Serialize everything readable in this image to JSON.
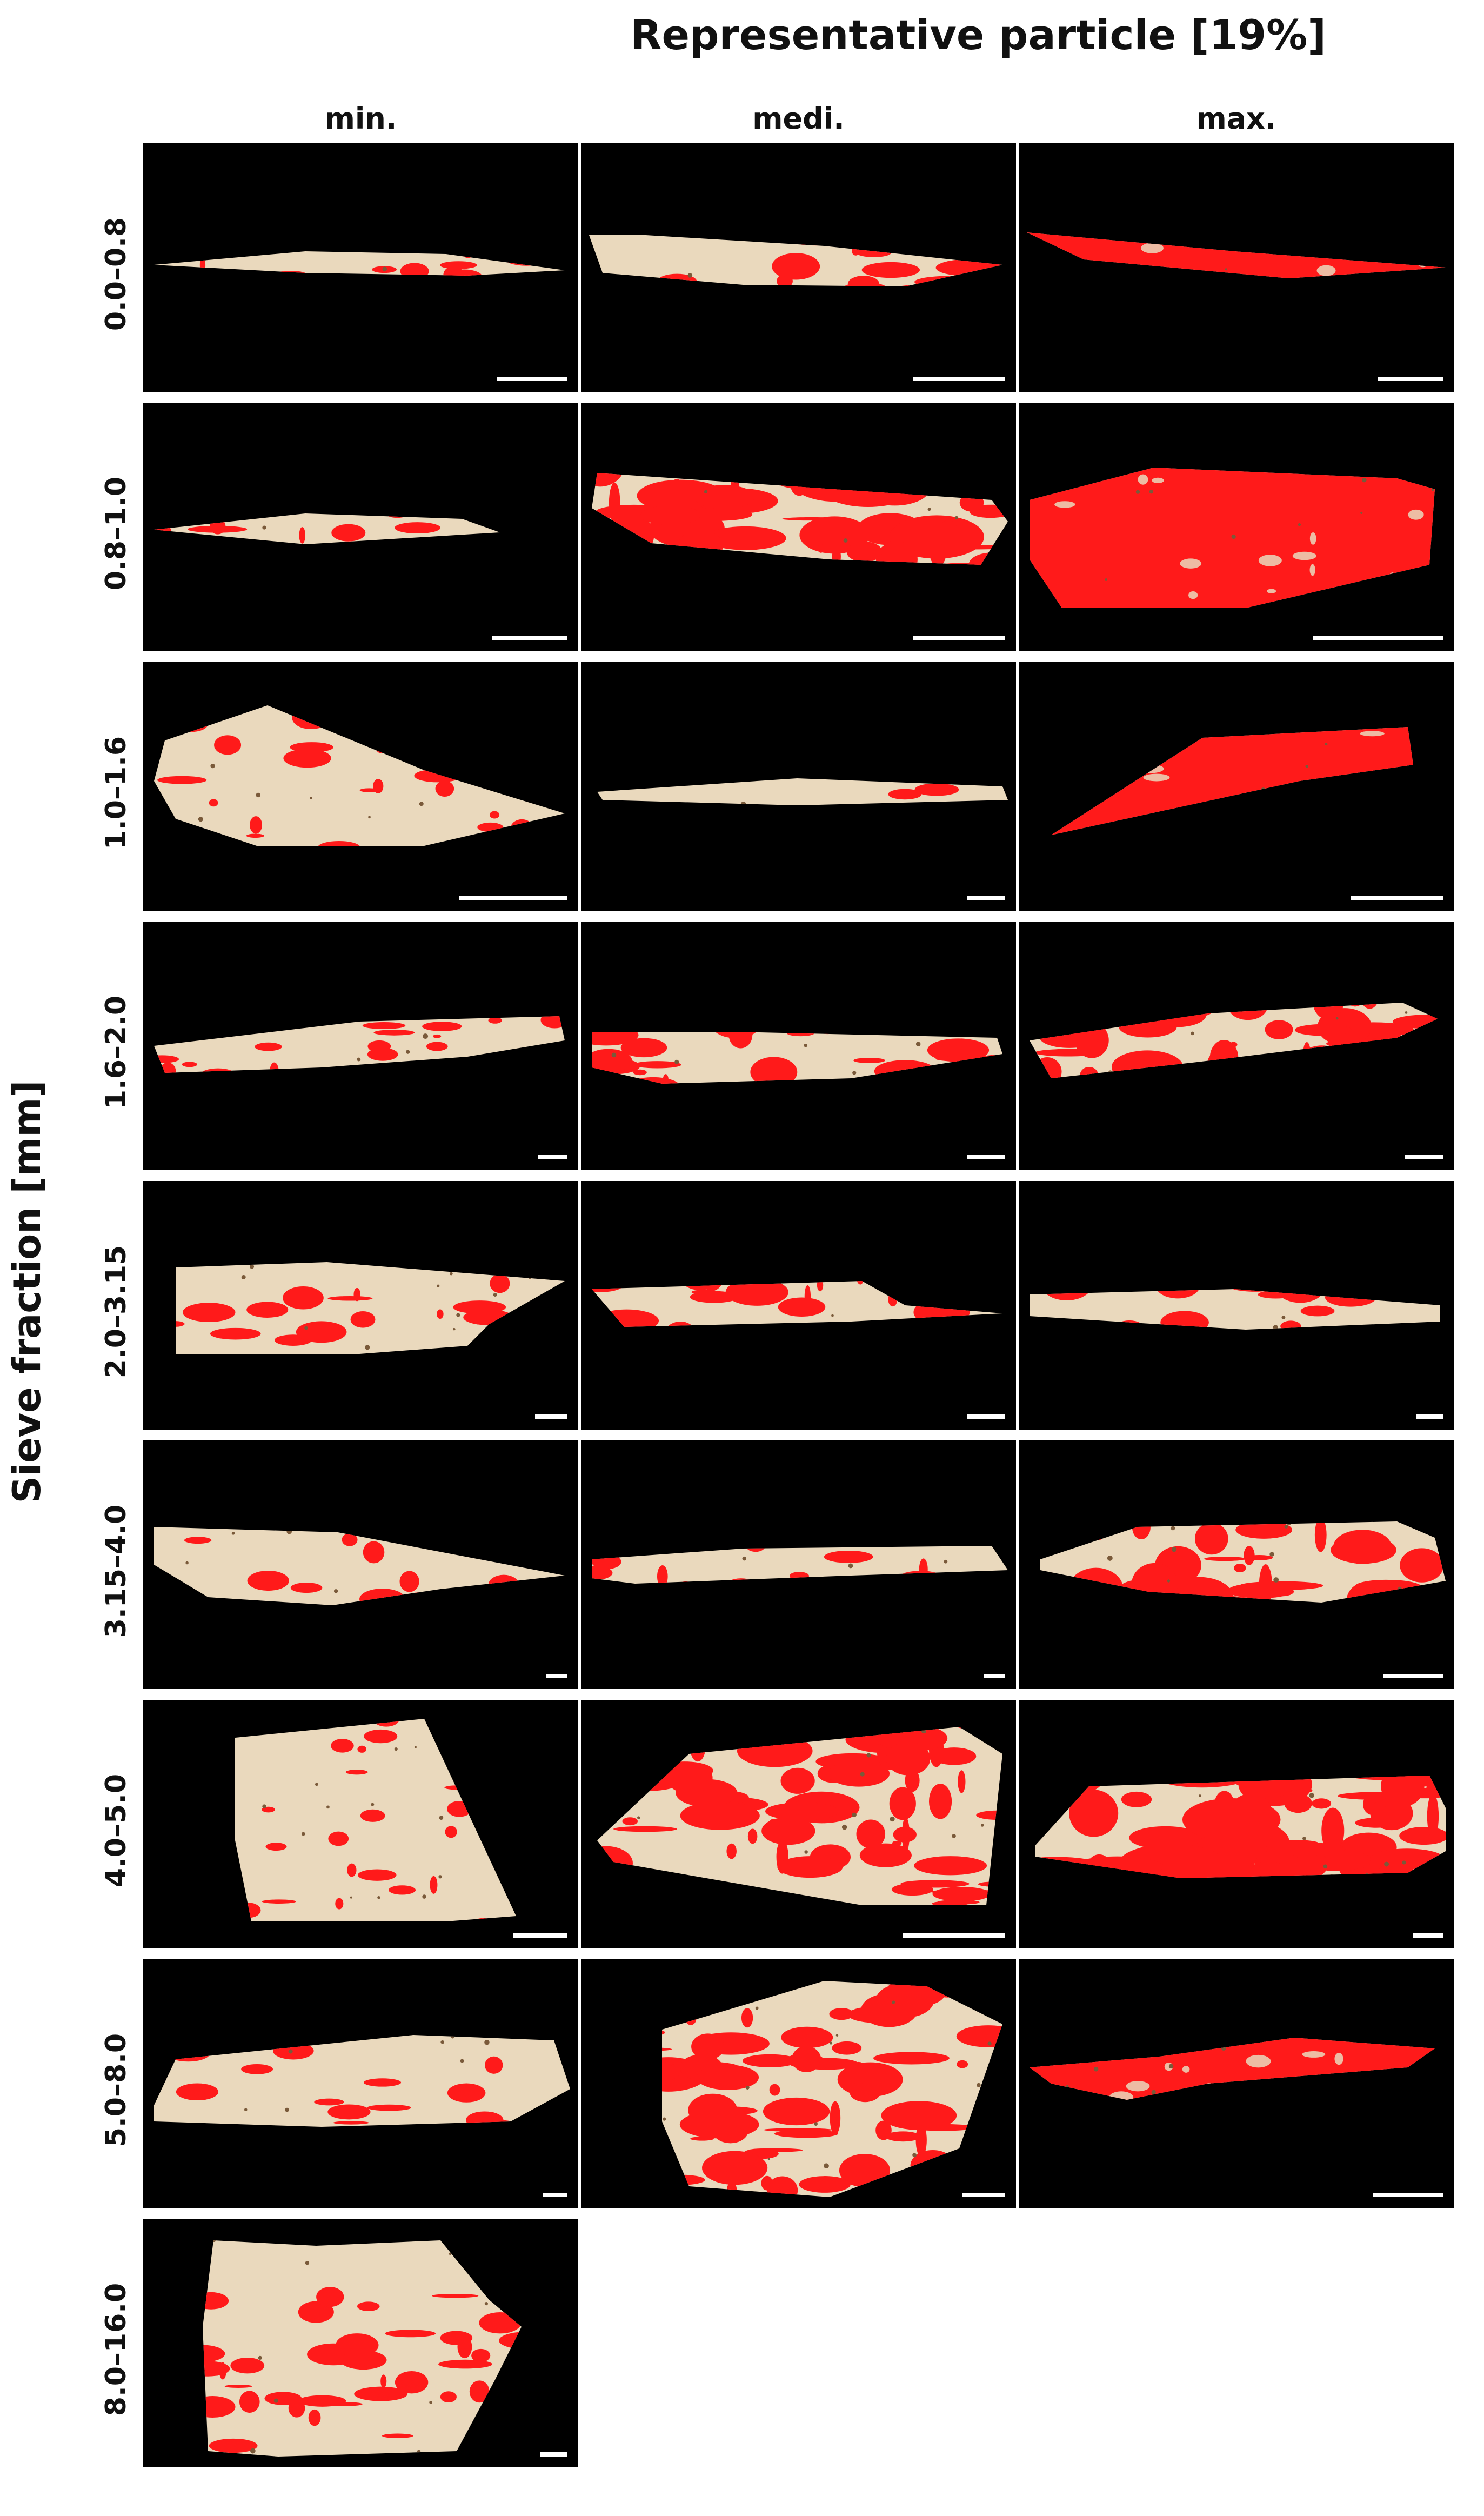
{
  "title": "Representative particle [19%]",
  "y_axis_label": "Sieve fraction [mm]",
  "columns": [
    "min.",
    "medi.",
    "max."
  ],
  "rows": [
    {
      "label": "0.0–0.8",
      "panels": 3
    },
    {
      "label": "0.8–1.0",
      "panels": 3
    },
    {
      "label": "1.0–1.6",
      "panels": 3
    },
    {
      "label": "1.6–2.0",
      "panels": 3
    },
    {
      "label": "2.0–3.15",
      "panels": 3
    },
    {
      "label": "3.15–4.0",
      "panels": 3
    },
    {
      "label": "4.0–5.0",
      "panels": 3
    },
    {
      "label": "5.0–8.0",
      "panels": 3
    },
    {
      "label": "8.0–16.0",
      "panels": 1
    }
  ],
  "colors": {
    "background": "#000000",
    "particle": "#ead9bd",
    "highlight": "#ff1a1a",
    "scale_bar": "#ffffff"
  }
}
